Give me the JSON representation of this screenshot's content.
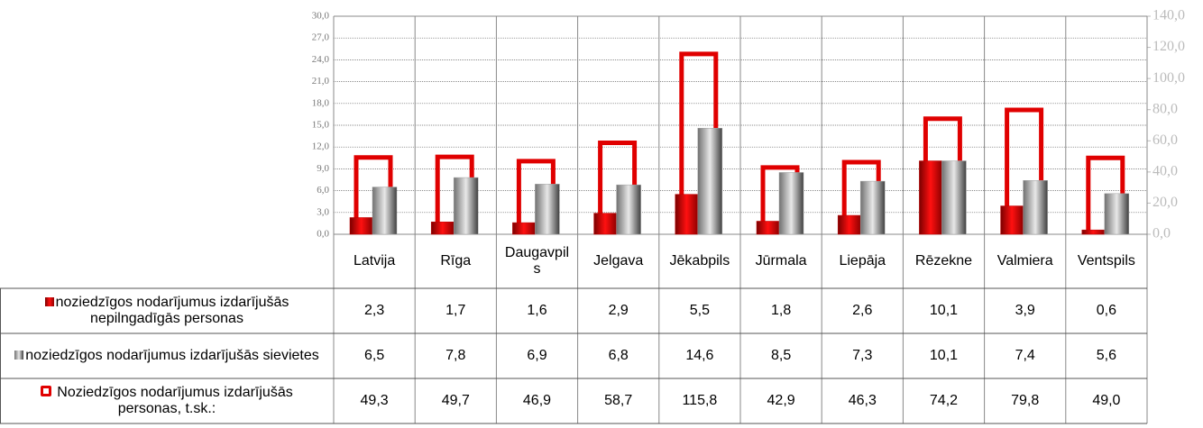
{
  "chart_data": {
    "type": "bar",
    "categories": [
      "Latvija",
      "Rīga",
      "Daugavpils",
      "Jelgava",
      "Jēkabpils",
      "Jūrmala",
      "Liepāja",
      "Rēzekne",
      "Valmiera",
      "Ventspils"
    ],
    "series": [
      {
        "name": "noziedzīgos nodarījumus izdarījušās nepilngadīgās personas",
        "color": "#c00000",
        "axis": "y",
        "values": [
          2.3,
          1.7,
          1.6,
          2.9,
          5.5,
          1.8,
          2.6,
          10.1,
          3.9,
          0.6
        ],
        "value_labels": [
          "2,3",
          "1,7",
          "1,6",
          "2,9",
          "5,5",
          "1,8",
          "2,6",
          "10,1",
          "3,9",
          "0,6"
        ]
      },
      {
        "name": "noziedzīgos nodarījumus izdarījušās sievietes",
        "color": "#a0a0a0",
        "axis": "y",
        "values": [
          6.5,
          7.8,
          6.9,
          6.8,
          14.6,
          8.5,
          7.3,
          10.1,
          7.4,
          5.6
        ],
        "value_labels": [
          "6,5",
          "7,8",
          "6,9",
          "6,8",
          "14,6",
          "8,5",
          "7,3",
          "10,1",
          "7,4",
          "5,6"
        ]
      },
      {
        "name": "Noziedzīgos nodarījumus izdarījušās personas, t.sk.:",
        "color": "#e00000",
        "axis": "y2",
        "values": [
          49.3,
          49.7,
          46.9,
          58.7,
          115.8,
          42.9,
          46.3,
          74.2,
          79.8,
          49.0
        ],
        "value_labels": [
          "49,3",
          "49,7",
          "46,9",
          "58,7",
          "115,8",
          "42,9",
          "46,3",
          "74,2",
          "79,8",
          "49,0"
        ]
      }
    ],
    "ylim": [
      0,
      30
    ],
    "yticks": [
      {
        "value": 0,
        "label": "0,0"
      },
      {
        "value": 3,
        "label": "3,0"
      },
      {
        "value": 6,
        "label": "6,0"
      },
      {
        "value": 9,
        "label": "9,0"
      },
      {
        "value": 12,
        "label": "12,0"
      },
      {
        "value": 15,
        "label": "15,0"
      },
      {
        "value": 18,
        "label": "18,0"
      },
      {
        "value": 21,
        "label": "21,0"
      },
      {
        "value": 24,
        "label": "24,0"
      },
      {
        "value": 27,
        "label": "27,0"
      },
      {
        "value": 30,
        "label": "30,0"
      }
    ],
    "y2lim": [
      0,
      140
    ],
    "y2ticks": [
      {
        "value": 0,
        "label": "0,0"
      },
      {
        "value": 20,
        "label": "20,0"
      },
      {
        "value": 40,
        "label": "40,0"
      },
      {
        "value": 60,
        "label": "60,0"
      },
      {
        "value": 80,
        "label": "80,0"
      },
      {
        "value": 100,
        "label": "100,0"
      },
      {
        "value": 120,
        "label": "120,0"
      },
      {
        "value": 140,
        "label": "140,0"
      }
    ],
    "grid": true
  }
}
